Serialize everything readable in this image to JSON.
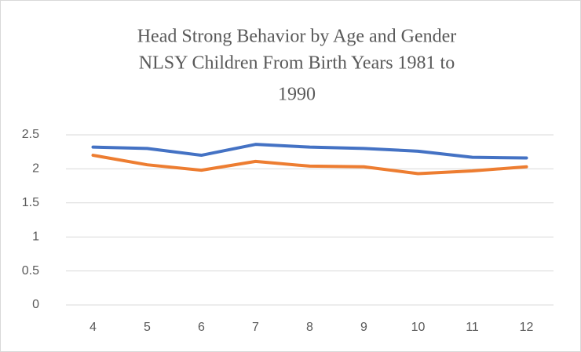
{
  "chart_data": {
    "type": "line",
    "title": [
      "Head Strong Behavior by Age and Gender",
      "NLSY Children From Birth Years 1981 to",
      "1990"
    ],
    "categories": [
      "4",
      "5",
      "6",
      "7",
      "8",
      "9",
      "10",
      "11",
      "12"
    ],
    "series": [
      {
        "color": "#4472c4",
        "values": [
          2.32,
          2.3,
          2.2,
          2.36,
          2.32,
          2.3,
          2.26,
          2.17,
          2.16
        ]
      },
      {
        "color": "#ed7d31",
        "values": [
          2.2,
          2.06,
          1.98,
          2.11,
          2.04,
          2.03,
          1.93,
          1.97,
          2.03
        ]
      }
    ],
    "ylim": [
      0,
      2.5
    ],
    "yticks": [
      0,
      0.5,
      1,
      1.5,
      2,
      2.5
    ],
    "grid": true
  }
}
